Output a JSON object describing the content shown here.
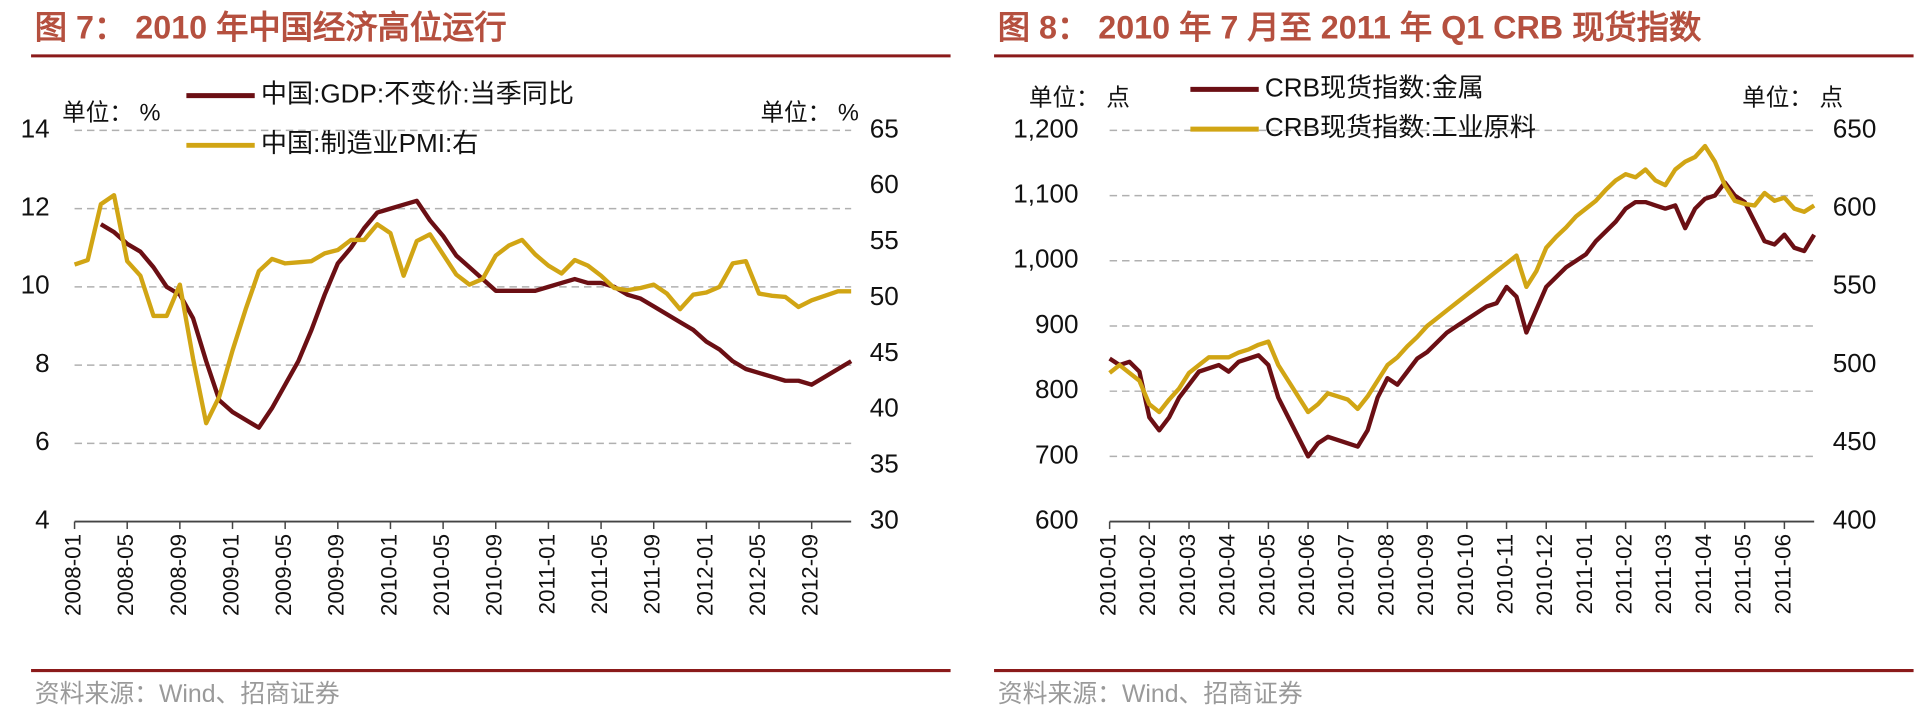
{
  "chart_data": [
    {
      "type": "line",
      "title": "图 7： 2010 年中国经济高位运行",
      "y_unit": "单位： %",
      "y2_unit": "单位： %",
      "source": "资料来源：Wind、招商证券",
      "categories": [
        "2008-01",
        null,
        null,
        null,
        "2008-05",
        null,
        null,
        null,
        "2008-09",
        null,
        null,
        null,
        "2009-01",
        null,
        null,
        null,
        "2009-05",
        null,
        null,
        null,
        "2009-09",
        null,
        null,
        null,
        "2010-01",
        null,
        null,
        null,
        "2010-05",
        null,
        null,
        null,
        "2010-09",
        null,
        null,
        null,
        "2011-01",
        null,
        null,
        null,
        "2011-05",
        null,
        null,
        null,
        "2011-09",
        null,
        null,
        null,
        "2012-01",
        null,
        null,
        null,
        "2012-05",
        null,
        null,
        null,
        "2012-09",
        null,
        null,
        null
      ],
      "ylim": [
        4,
        14
      ],
      "yticks": [
        4,
        6,
        8,
        10,
        12,
        14
      ],
      "y2lim": [
        30,
        65
      ],
      "y2ticks": [
        30,
        35,
        40,
        45,
        50,
        55,
        60,
        65
      ],
      "grid": true,
      "series": [
        {
          "name": "中国:GDP:不变价:当季同比",
          "color": "#6b0f14",
          "values": [
            null,
            null,
            11.6,
            11.4,
            11.1,
            10.9,
            10.5,
            10.0,
            9.8,
            9.2,
            8.1,
            7.1,
            6.8,
            6.6,
            6.4,
            6.9,
            7.5,
            8.1,
            8.9,
            9.8,
            10.6,
            11.0,
            11.5,
            11.9,
            12.0,
            12.1,
            12.2,
            11.7,
            11.3,
            10.8,
            10.5,
            10.2,
            9.9,
            9.9,
            9.9,
            9.9,
            10.0,
            10.1,
            10.2,
            10.1,
            10.1,
            10.0,
            9.8,
            9.7,
            9.5,
            9.3,
            9.1,
            8.9,
            8.6,
            8.4,
            8.1,
            7.9,
            7.8,
            7.7,
            7.6,
            7.6,
            7.5,
            7.7,
            7.9,
            8.1
          ]
        },
        {
          "name": "中国:制造业PMI:右",
          "color": "#d1a514",
          "axis": "y2",
          "values": [
            53.0,
            53.4,
            58.4,
            59.2,
            53.3,
            52.0,
            48.4,
            48.4,
            51.2,
            44.6,
            38.8,
            41.2,
            45.3,
            49.0,
            52.4,
            53.5,
            53.1,
            53.2,
            53.3,
            54.0,
            54.3,
            55.2,
            55.2,
            56.6,
            55.8,
            52.0,
            55.1,
            55.7,
            53.9,
            52.1,
            51.2,
            51.7,
            53.8,
            54.7,
            55.2,
            53.9,
            52.9,
            52.2,
            53.4,
            52.9,
            52.0,
            50.9,
            50.7,
            50.9,
            51.2,
            50.4,
            49.0,
            50.3,
            50.5,
            51.0,
            53.1,
            53.3,
            50.4,
            50.2,
            50.1,
            49.2,
            49.8,
            50.2,
            50.6,
            50.6
          ]
        }
      ]
    },
    {
      "type": "line",
      "title": "图 8： 2010 年 7 月至 2011 年 Q1 CRB 现货指数",
      "y_unit": "单位： 点",
      "y2_unit": "单位： 点",
      "source": "资料来源：Wind、招商证券",
      "categories": [
        "2010-01",
        null,
        null,
        null,
        "2010-02",
        null,
        null,
        null,
        "2010-03",
        null,
        null,
        null,
        "2010-04",
        null,
        null,
        null,
        "2010-05",
        null,
        null,
        null,
        "2010-06",
        null,
        null,
        null,
        "2010-07",
        null,
        null,
        null,
        "2010-08",
        null,
        null,
        null,
        "2010-09",
        null,
        null,
        null,
        "2010-10",
        null,
        null,
        null,
        "2010-11",
        null,
        null,
        null,
        "2010-12",
        null,
        null,
        null,
        "2011-01",
        null,
        null,
        null,
        "2011-02",
        null,
        null,
        null,
        "2011-03",
        null,
        null,
        null,
        "2011-04",
        null,
        null,
        null,
        "2011-05",
        null,
        null,
        null,
        "2011-06",
        null,
        null,
        null
      ],
      "ylim": [
        600,
        1200
      ],
      "yticks": [
        600,
        700,
        800,
        900,
        {
          "value": 1000,
          "label": "1,000"
        },
        {
          "value": 1100,
          "label": "1,100"
        },
        {
          "value": 1200,
          "label": "1,200"
        }
      ],
      "y2lim": [
        400,
        650
      ],
      "y2ticks": [
        400,
        450,
        500,
        550,
        600,
        650
      ],
      "grid": true,
      "series": [
        {
          "name": "CRB现货指数:金属",
          "color": "#6b0f14",
          "values": [
            850,
            840,
            845,
            830,
            760,
            740,
            760,
            790,
            810,
            830,
            835,
            840,
            830,
            845,
            850,
            855,
            840,
            790,
            760,
            730,
            700,
            720,
            730,
            725,
            720,
            715,
            740,
            790,
            820,
            810,
            830,
            850,
            860,
            875,
            890,
            900,
            910,
            920,
            930,
            935,
            960,
            945,
            890,
            925,
            960,
            975,
            990,
            1000,
            1010,
            1030,
            1045,
            1060,
            1080,
            1090,
            1090,
            1085,
            1080,
            1085,
            1050,
            1080,
            1095,
            1100,
            1120,
            1100,
            1090,
            1060,
            1030,
            1025,
            1040,
            1020,
            1015,
            1040
          ]
        },
        {
          "name": "CRB现货指数:工业原料",
          "color": "#d1a514",
          "axis": "y2",
          "values": [
            495,
            500,
            495,
            490,
            475,
            470,
            478,
            485,
            495,
            500,
            505,
            505,
            505,
            508,
            510,
            513,
            515,
            500,
            490,
            480,
            470,
            475,
            482,
            480,
            478,
            472,
            480,
            490,
            500,
            505,
            512,
            518,
            525,
            530,
            535,
            540,
            545,
            550,
            555,
            560,
            565,
            570,
            550,
            560,
            575,
            582,
            588,
            595,
            600,
            605,
            612,
            618,
            622,
            620,
            625,
            618,
            615,
            625,
            630,
            633,
            640,
            630,
            615,
            605,
            603,
            602,
            610,
            605,
            607,
            600,
            598,
            602
          ]
        }
      ]
    }
  ]
}
